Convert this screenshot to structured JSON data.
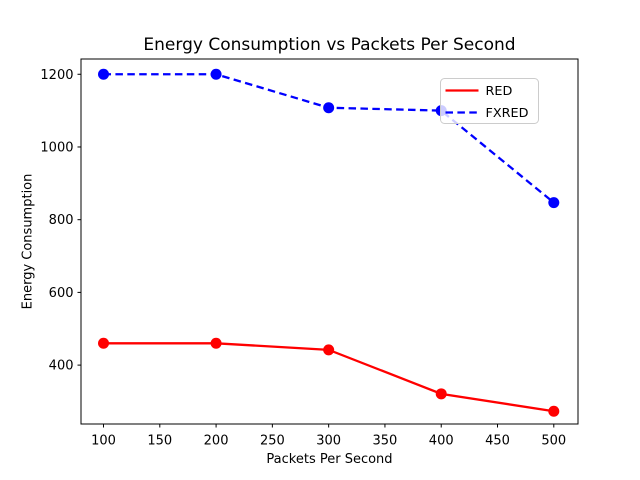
{
  "figure": {
    "background": "#ffffff",
    "text_color": "#000000"
  },
  "chart_data": {
    "type": "line",
    "title": "Energy Consumption vs Packets Per Second",
    "xlabel": "Packets Per Second",
    "ylabel": "Energy Consumption",
    "x": [
      100,
      200,
      300,
      400,
      500
    ],
    "series": [
      {
        "name": "RED",
        "color": "#ff0000",
        "linestyle": "solid",
        "marker": "circle",
        "values": [
          460,
          460,
          442,
          321,
          273
        ]
      },
      {
        "name": "FXRED",
        "color": "#0000ff",
        "linestyle": "dashed",
        "marker": "circle",
        "values": [
          1200,
          1200,
          1108,
          1100,
          847
        ]
      }
    ],
    "xticks": [
      100,
      150,
      200,
      250,
      300,
      350,
      400,
      450,
      500
    ],
    "yticks": [
      400,
      600,
      800,
      1000,
      1200
    ],
    "xlim": [
      80,
      521.5
    ],
    "ylim": [
      238,
      1242
    ],
    "grid": false,
    "legend": {
      "position": "upper-right",
      "entries": [
        "RED",
        "FXRED"
      ],
      "border_color": "#cccccc",
      "background": "#ffffff"
    }
  }
}
